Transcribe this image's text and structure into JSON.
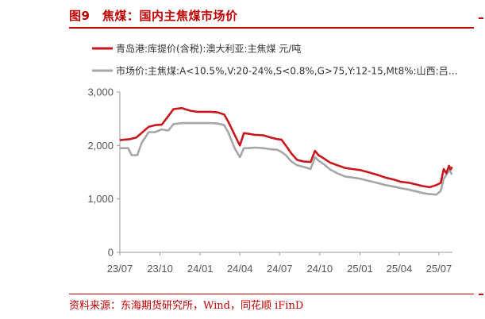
{
  "figure": {
    "title": "图9　焦煤：国内主焦煤市场价",
    "source": "资料来源：东海期货研究所，Wind，同花顺 iFinD"
  },
  "colors": {
    "accent": "#c00000",
    "series_red": "#c8161d",
    "series_gray": "#a6a6a6"
  },
  "chart_data": {
    "type": "line",
    "title": "",
    "xlabel": "",
    "ylabel": "",
    "x_tick_labels": [
      "23/07",
      "23/10",
      "24/01",
      "24/04",
      "24/07",
      "24/10",
      "25/01",
      "25/04",
      "25/07"
    ],
    "y_ticks": [
      0,
      1000,
      2000,
      3000
    ],
    "y_tick_labels": [
      "0",
      "1,000",
      "2,000",
      "3,000"
    ],
    "ylim": [
      0,
      3000
    ],
    "xlim": [
      "2023-07-01",
      "2025-08-01"
    ],
    "grid": false,
    "legend_position": "top-left",
    "series": [
      {
        "name": "青岛港:库提价(含税):澳大利亚:主焦煤 元/吨",
        "color": "#c8161d",
        "points": [
          [
            "2023-07-01",
            2100
          ],
          [
            "2023-07-25",
            2120
          ],
          [
            "2023-08-08",
            2150
          ],
          [
            "2023-08-22",
            2250
          ],
          [
            "2023-09-05",
            2350
          ],
          [
            "2023-09-20",
            2380
          ],
          [
            "2023-10-05",
            2390
          ],
          [
            "2023-10-20",
            2550
          ],
          [
            "2023-11-01",
            2680
          ],
          [
            "2023-11-20",
            2700
          ],
          [
            "2023-12-10",
            2650
          ],
          [
            "2023-12-25",
            2630
          ],
          [
            "2024-01-05",
            2630
          ],
          [
            "2024-01-25",
            2630
          ],
          [
            "2024-02-10",
            2620
          ],
          [
            "2024-02-25",
            2580
          ],
          [
            "2024-03-05",
            2450
          ],
          [
            "2024-03-20",
            2200
          ],
          [
            "2024-04-01",
            2000
          ],
          [
            "2024-04-10",
            2230
          ],
          [
            "2024-04-20",
            2220
          ],
          [
            "2024-05-05",
            2200
          ],
          [
            "2024-05-25",
            2190
          ],
          [
            "2024-06-10",
            2150
          ],
          [
            "2024-06-25",
            2120
          ],
          [
            "2024-07-05",
            2110
          ],
          [
            "2024-07-15",
            2000
          ],
          [
            "2024-07-28",
            1850
          ],
          [
            "2024-08-10",
            1730
          ],
          [
            "2024-08-25",
            1700
          ],
          [
            "2024-09-10",
            1690
          ],
          [
            "2024-09-20",
            1900
          ],
          [
            "2024-09-28",
            1820
          ],
          [
            "2024-10-10",
            1760
          ],
          [
            "2024-10-25",
            1680
          ],
          [
            "2024-11-10",
            1630
          ],
          [
            "2024-11-28",
            1580
          ],
          [
            "2024-12-15",
            1560
          ],
          [
            "2025-01-01",
            1540
          ],
          [
            "2025-01-20",
            1500
          ],
          [
            "2025-02-10",
            1450
          ],
          [
            "2025-02-28",
            1400
          ],
          [
            "2025-03-20",
            1360
          ],
          [
            "2025-04-05",
            1320
          ],
          [
            "2025-04-25",
            1300
          ],
          [
            "2025-05-10",
            1270
          ],
          [
            "2025-05-25",
            1240
          ],
          [
            "2025-06-10",
            1220
          ],
          [
            "2025-06-25",
            1260
          ],
          [
            "2025-07-05",
            1300
          ],
          [
            "2025-07-12",
            1560
          ],
          [
            "2025-07-18",
            1480
          ],
          [
            "2025-07-24",
            1620
          ],
          [
            "2025-07-28",
            1550
          ],
          [
            "2025-07-31",
            1600
          ]
        ]
      },
      {
        "name": "市场价:主焦煤:A<10.5%,V:20-24%,S<0.8%,G>75,Y:12-15,Mt8%:山西:吕…",
        "color": "#a6a6a6",
        "points": [
          [
            "2023-07-01",
            1950
          ],
          [
            "2023-07-20",
            1950
          ],
          [
            "2023-07-28",
            1820
          ],
          [
            "2023-08-10",
            1820
          ],
          [
            "2023-08-20",
            2050
          ],
          [
            "2023-09-05",
            2250
          ],
          [
            "2023-09-20",
            2250
          ],
          [
            "2023-10-05",
            2300
          ],
          [
            "2023-10-20",
            2280
          ],
          [
            "2023-11-01",
            2400
          ],
          [
            "2023-11-20",
            2420
          ],
          [
            "2023-12-10",
            2420
          ],
          [
            "2024-01-05",
            2420
          ],
          [
            "2024-01-25",
            2420
          ],
          [
            "2024-02-10",
            2410
          ],
          [
            "2024-02-25",
            2380
          ],
          [
            "2024-03-05",
            2250
          ],
          [
            "2024-03-20",
            1950
          ],
          [
            "2024-04-01",
            1780
          ],
          [
            "2024-04-10",
            1950
          ],
          [
            "2024-04-20",
            1950
          ],
          [
            "2024-05-05",
            1960
          ],
          [
            "2024-05-25",
            1950
          ],
          [
            "2024-06-10",
            1930
          ],
          [
            "2024-06-25",
            1920
          ],
          [
            "2024-07-05",
            1880
          ],
          [
            "2024-07-15",
            1820
          ],
          [
            "2024-07-28",
            1700
          ],
          [
            "2024-08-10",
            1630
          ],
          [
            "2024-08-25",
            1600
          ],
          [
            "2024-09-10",
            1560
          ],
          [
            "2024-09-20",
            1780
          ],
          [
            "2024-09-28",
            1720
          ],
          [
            "2024-10-10",
            1650
          ],
          [
            "2024-10-25",
            1550
          ],
          [
            "2024-11-10",
            1480
          ],
          [
            "2024-11-28",
            1420
          ],
          [
            "2024-12-15",
            1400
          ],
          [
            "2025-01-01",
            1380
          ],
          [
            "2025-01-20",
            1340
          ],
          [
            "2025-02-10",
            1300
          ],
          [
            "2025-02-28",
            1260
          ],
          [
            "2025-03-20",
            1230
          ],
          [
            "2025-04-05",
            1200
          ],
          [
            "2025-04-25",
            1170
          ],
          [
            "2025-05-10",
            1140
          ],
          [
            "2025-05-25",
            1110
          ],
          [
            "2025-06-10",
            1090
          ],
          [
            "2025-06-25",
            1080
          ],
          [
            "2025-07-05",
            1150
          ],
          [
            "2025-07-12",
            1380
          ],
          [
            "2025-07-18",
            1450
          ],
          [
            "2025-07-24",
            1540
          ],
          [
            "2025-07-31",
            1460
          ]
        ]
      }
    ]
  }
}
